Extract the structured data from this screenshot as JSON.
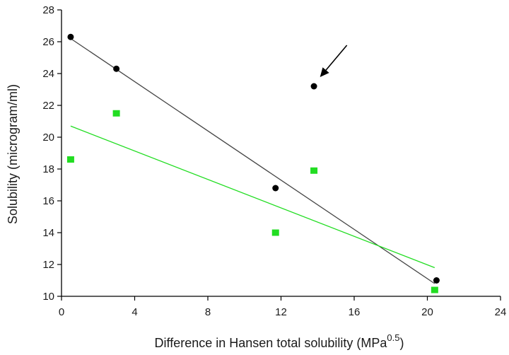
{
  "chart_data": {
    "type": "scatter",
    "xlabel": "Difference in Hansen total solubility (MPa",
    "xlabel_sup": "0.5",
    "xlabel_tail": ")",
    "ylabel": "Solubility (microgram/ml)",
    "xlim": [
      0,
      24
    ],
    "ylim": [
      10,
      28
    ],
    "x_ticks": [
      0,
      4,
      8,
      12,
      16,
      20,
      24
    ],
    "y_ticks": [
      10,
      12,
      14,
      16,
      18,
      20,
      22,
      24,
      26,
      28
    ],
    "grid": false,
    "series": [
      {
        "marker": "circle",
        "color": "#000000",
        "points": [
          [
            0.5,
            26.3
          ],
          [
            3.0,
            24.3
          ],
          [
            11.7,
            16.8
          ],
          [
            13.8,
            23.2
          ],
          [
            20.5,
            11.0
          ]
        ],
        "trendline": {
          "x": [
            0.5,
            20.4
          ],
          "y": [
            26.2,
            10.8
          ],
          "color": "#444444"
        }
      },
      {
        "marker": "square",
        "color": "#22dd22",
        "points": [
          [
            0.5,
            18.6
          ],
          [
            3.0,
            21.5
          ],
          [
            11.7,
            14.0
          ],
          [
            13.8,
            17.9
          ],
          [
            20.4,
            10.4
          ]
        ],
        "trendline": {
          "x": [
            0.5,
            20.4
          ],
          "y": [
            20.7,
            11.8
          ],
          "color": "#22dd22"
        }
      }
    ],
    "annotations": [
      {
        "type": "arrow",
        "points_to": [
          13.9,
          23.6
        ],
        "color": "#000000"
      }
    ]
  }
}
